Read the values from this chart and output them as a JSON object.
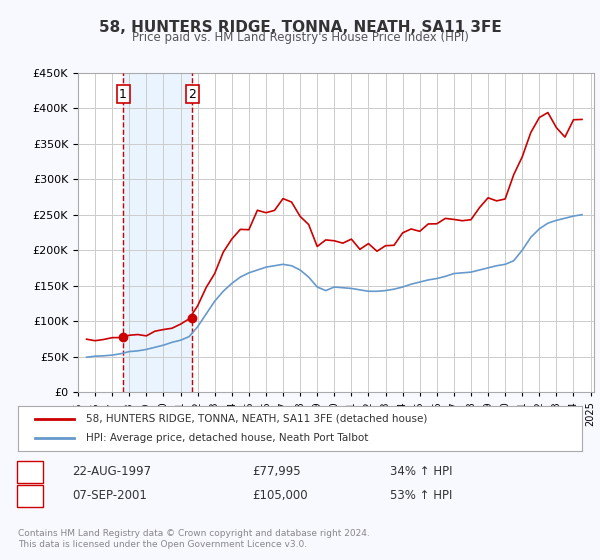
{
  "title": "58, HUNTERS RIDGE, TONNA, NEATH, SA11 3FE",
  "subtitle": "Price paid vs. HM Land Registry's House Price Index (HPI)",
  "legend_line1": "58, HUNTERS RIDGE, TONNA, NEATH, SA11 3FE (detached house)",
  "legend_line2": "HPI: Average price, detached house, Neath Port Talbot",
  "sale1_label": "1",
  "sale1_date": "22-AUG-1997",
  "sale1_price": "£77,995",
  "sale1_hpi": "34% ↑ HPI",
  "sale1_year": 1997.64,
  "sale1_value": 77995,
  "sale2_label": "2",
  "sale2_date": "07-SEP-2001",
  "sale2_price": "£105,000",
  "sale2_hpi": "53% ↑ HPI",
  "sale2_year": 2001.69,
  "sale2_value": 105000,
  "footer": "Contains HM Land Registry data © Crown copyright and database right 2024.\nThis data is licensed under the Open Government Licence v3.0.",
  "ylim": [
    0,
    450000
  ],
  "yticks": [
    0,
    50000,
    100000,
    150000,
    200000,
    250000,
    300000,
    350000,
    400000,
    450000
  ],
  "background_color": "#f8f8ff",
  "plot_bg": "#ffffff",
  "red_color": "#cc0000",
  "blue_color": "#6699cc",
  "shade_color": "#ddeeff",
  "grid_color": "#cccccc",
  "vline_color": "#cc0000"
}
